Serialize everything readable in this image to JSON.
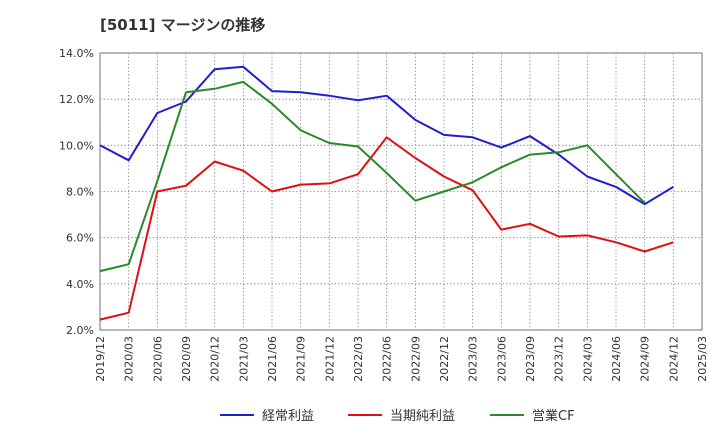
{
  "chart_data": {
    "type": "line",
    "title": "[5011]  マージンの推移",
    "xlabel": "",
    "ylabel": "",
    "x": [
      "2019/12",
      "2020/03",
      "2020/06",
      "2020/09",
      "2020/12",
      "2021/03",
      "2021/06",
      "2021/09",
      "2021/12",
      "2022/03",
      "2022/06",
      "2022/09",
      "2022/12",
      "2023/03",
      "2023/06",
      "2023/09",
      "2023/12",
      "2024/03",
      "2024/06",
      "2024/09",
      "2024/12",
      "2025/03"
    ],
    "yticks": [
      "2.0%",
      "4.0%",
      "6.0%",
      "8.0%",
      "10.0%",
      "12.0%",
      "14.0%"
    ],
    "ylim": [
      2.0,
      14.0
    ],
    "grid": true,
    "legend_position": "bottom",
    "series": [
      {
        "name": "経常利益",
        "color": "#1f1fd0",
        "values": [
          10.0,
          9.35,
          11.4,
          11.9,
          13.3,
          13.4,
          12.35,
          12.3,
          12.15,
          11.95,
          12.15,
          11.1,
          10.45,
          10.35,
          9.9,
          10.4,
          9.6,
          8.65,
          8.2,
          7.45,
          8.2,
          null
        ]
      },
      {
        "name": "当期純利益",
        "color": "#e01010",
        "values": [
          2.45,
          2.75,
          8.0,
          8.25,
          9.3,
          8.9,
          8.0,
          8.3,
          8.35,
          8.75,
          10.35,
          9.45,
          8.65,
          8.05,
          6.35,
          6.6,
          6.05,
          6.1,
          5.8,
          5.4,
          5.8,
          null
        ]
      },
      {
        "name": "営業CF",
        "color": "#2a8a2a",
        "values": [
          4.55,
          4.85,
          8.45,
          12.3,
          12.45,
          12.75,
          11.8,
          10.65,
          10.1,
          9.95,
          8.8,
          7.6,
          8.0,
          8.4,
          9.05,
          9.6,
          9.7,
          10.0,
          8.75,
          7.5,
          null,
          null
        ]
      }
    ]
  }
}
